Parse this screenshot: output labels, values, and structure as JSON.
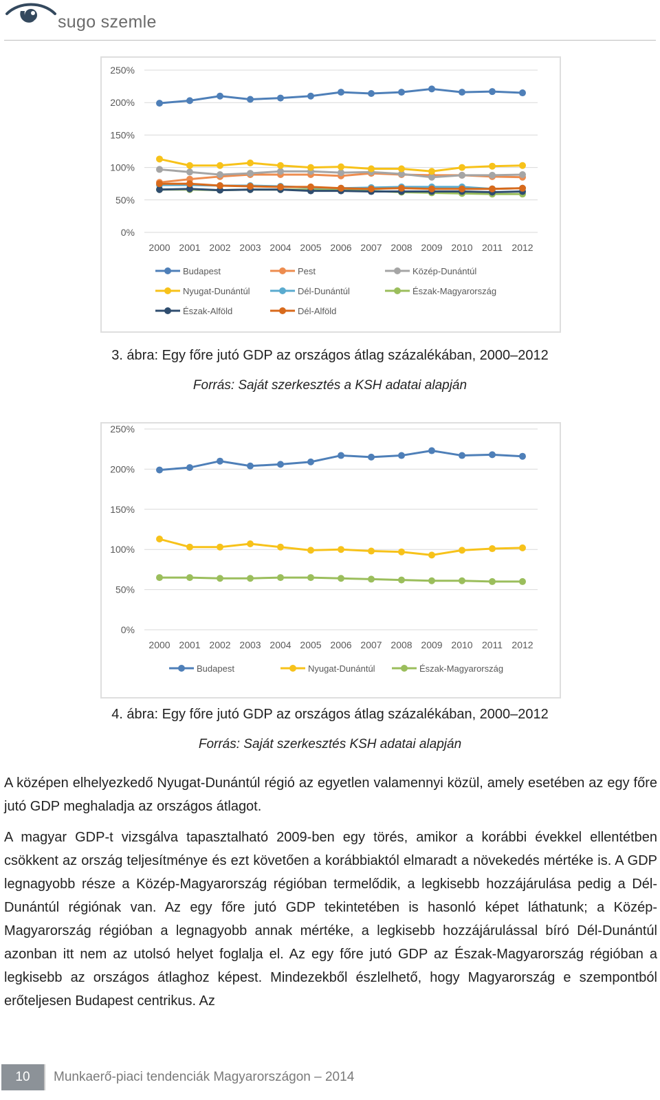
{
  "header": {
    "logo_text": "sugo szemle"
  },
  "figure3": {
    "caption": "3.  ábra: Egy főre jutó GDP az országos átlag százalékában, 2000–2012",
    "source": "Forrás: Saját szerkesztés a KSH adatai alapján"
  },
  "figure4": {
    "caption": "4.  ábra: Egy főre jutó GDP az országos átlag százalékában, 2000–2012",
    "source": "Forrás: Saját szerkesztés KSH adatai alapján"
  },
  "body": {
    "paragraph1": "A középen elhelyezkedő Nyugat-Dunántúl régió az egyetlen valamennyi közül, amely esetében az egy főre jutó GDP meghaladja az országos átlagot.",
    "paragraph2": "A magyar GDP-t vizsgálva tapasztalható 2009-ben egy törés, amikor a korábbi évekkel ellentétben csökkent az ország teljesítménye és ezt követően a korábbiaktól elmaradt a növekedés mértéke is. A GDP legnagyobb része a Közép-Magyarország régióban termelődik, a legkisebb hozzájárulása pedig a Dél-Dunántúl régiónak van. Az egy főre jutó GDP tekintetében is hasonló képet láthatunk; a Közép-Magyarország régióban a legnagyobb annak mértéke, a legkisebb hozzájárulással bíró Dél-Dunántúl azonban itt nem az utolsó helyet foglalja el. Az egy főre jutó GDP az Észak-Magyarország régióban a legkisebb az országos átlaghoz képest. Mindezekből észlelhető, hogy Magyarország e szempontból erőteljesen Budapest centrikus. Az"
  },
  "footer": {
    "page_number": "10",
    "title": "Munkaerő-piaci tendenciák Magyarországon – 2014"
  },
  "chart_data": [
    {
      "type": "line",
      "title": "",
      "xlabel": "",
      "ylabel": "",
      "ylim": [
        0,
        250
      ],
      "y_ticks": [
        "0%",
        "50%",
        "100%",
        "150%",
        "200%",
        "250%"
      ],
      "x": [
        "2000",
        "2001",
        "2002",
        "2003",
        "2004",
        "2005",
        "2006",
        "2007",
        "2008",
        "2009",
        "2010",
        "2011",
        "2012"
      ],
      "legend_position": "bottom",
      "series": [
        {
          "name": "Budapest",
          "color": "#4e7fb8",
          "values": [
            199,
            203,
            210,
            205,
            207,
            210,
            216,
            214,
            216,
            221,
            216,
            217,
            215
          ]
        },
        {
          "name": "Pest",
          "color": "#ed8c4f",
          "values": [
            77,
            82,
            86,
            89,
            89,
            89,
            87,
            91,
            89,
            88,
            88,
            86,
            85
          ]
        },
        {
          "name": "Közép-Dunántúl",
          "color": "#a5a5a5",
          "values": [
            97,
            93,
            89,
            91,
            94,
            94,
            92,
            93,
            90,
            85,
            88,
            88,
            89
          ]
        },
        {
          "name": "Nyugat-Dunántúl",
          "color": "#f7c21a",
          "values": [
            113,
            103,
            103,
            107,
            103,
            100,
            101,
            98,
            98,
            94,
            100,
            102,
            103
          ]
        },
        {
          "name": "Dél-Dunántúl",
          "color": "#5aabcf",
          "values": [
            73,
            73,
            72,
            72,
            71,
            69,
            68,
            69,
            70,
            70,
            70,
            67,
            68
          ]
        },
        {
          "name": "Észak-Magyarország",
          "color": "#9bbe5c",
          "values": [
            66,
            66,
            65,
            66,
            66,
            66,
            65,
            64,
            62,
            61,
            60,
            59,
            59
          ]
        },
        {
          "name": "Észak-Alföld",
          "color": "#2f4d6f",
          "values": [
            66,
            67,
            65,
            66,
            66,
            64,
            64,
            63,
            63,
            63,
            63,
            62,
            63
          ]
        },
        {
          "name": "Dél-Alföld",
          "color": "#d86a1c",
          "values": [
            75,
            75,
            72,
            71,
            70,
            70,
            68,
            67,
            68,
            67,
            67,
            67,
            68
          ]
        }
      ]
    },
    {
      "type": "line",
      "title": "",
      "xlabel": "",
      "ylabel": "",
      "ylim": [
        0,
        250
      ],
      "y_ticks": [
        "0%",
        "50%",
        "100%",
        "150%",
        "200%",
        "250%"
      ],
      "x": [
        "2000",
        "2001",
        "2002",
        "2003",
        "2004",
        "2005",
        "2006",
        "2007",
        "2008",
        "2009",
        "2010",
        "2011",
        "2012"
      ],
      "legend_position": "bottom",
      "series": [
        {
          "name": "Budapest",
          "color": "#4e7fb8",
          "values": [
            199,
            202,
            210,
            204,
            206,
            209,
            217,
            215,
            217,
            223,
            217,
            218,
            216
          ]
        },
        {
          "name": "Nyugat-Dunántúl",
          "color": "#f7c21a",
          "values": [
            113,
            103,
            103,
            107,
            103,
            99,
            100,
            98,
            97,
            93,
            99,
            101,
            102
          ]
        },
        {
          "name": "Észak-Magyarország",
          "color": "#9bbe5c",
          "values": [
            65,
            65,
            64,
            64,
            65,
            65,
            64,
            63,
            62,
            61,
            61,
            60,
            60
          ]
        }
      ]
    }
  ]
}
